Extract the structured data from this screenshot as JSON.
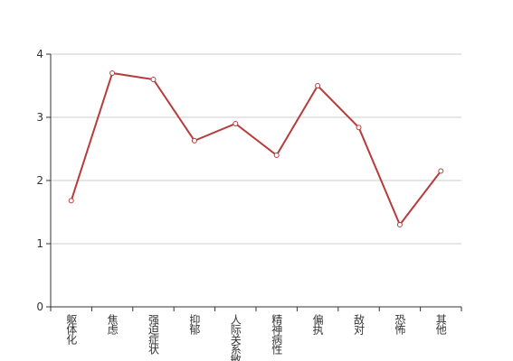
{
  "chart_data": {
    "type": "line",
    "categories": [
      "躯体化",
      "焦虑",
      "强迫症状",
      "抑郁",
      "人际关系敏感",
      "精神病性",
      "偏执",
      "敌对",
      "恐怖",
      "其他"
    ],
    "values": [
      1.68,
      3.7,
      3.6,
      2.63,
      2.9,
      2.4,
      3.5,
      2.84,
      1.3,
      2.15
    ],
    "color": "#b83b3b",
    "ylim": [
      0,
      4
    ],
    "yticks": [
      0,
      1,
      2,
      3,
      4
    ],
    "grid": true
  }
}
